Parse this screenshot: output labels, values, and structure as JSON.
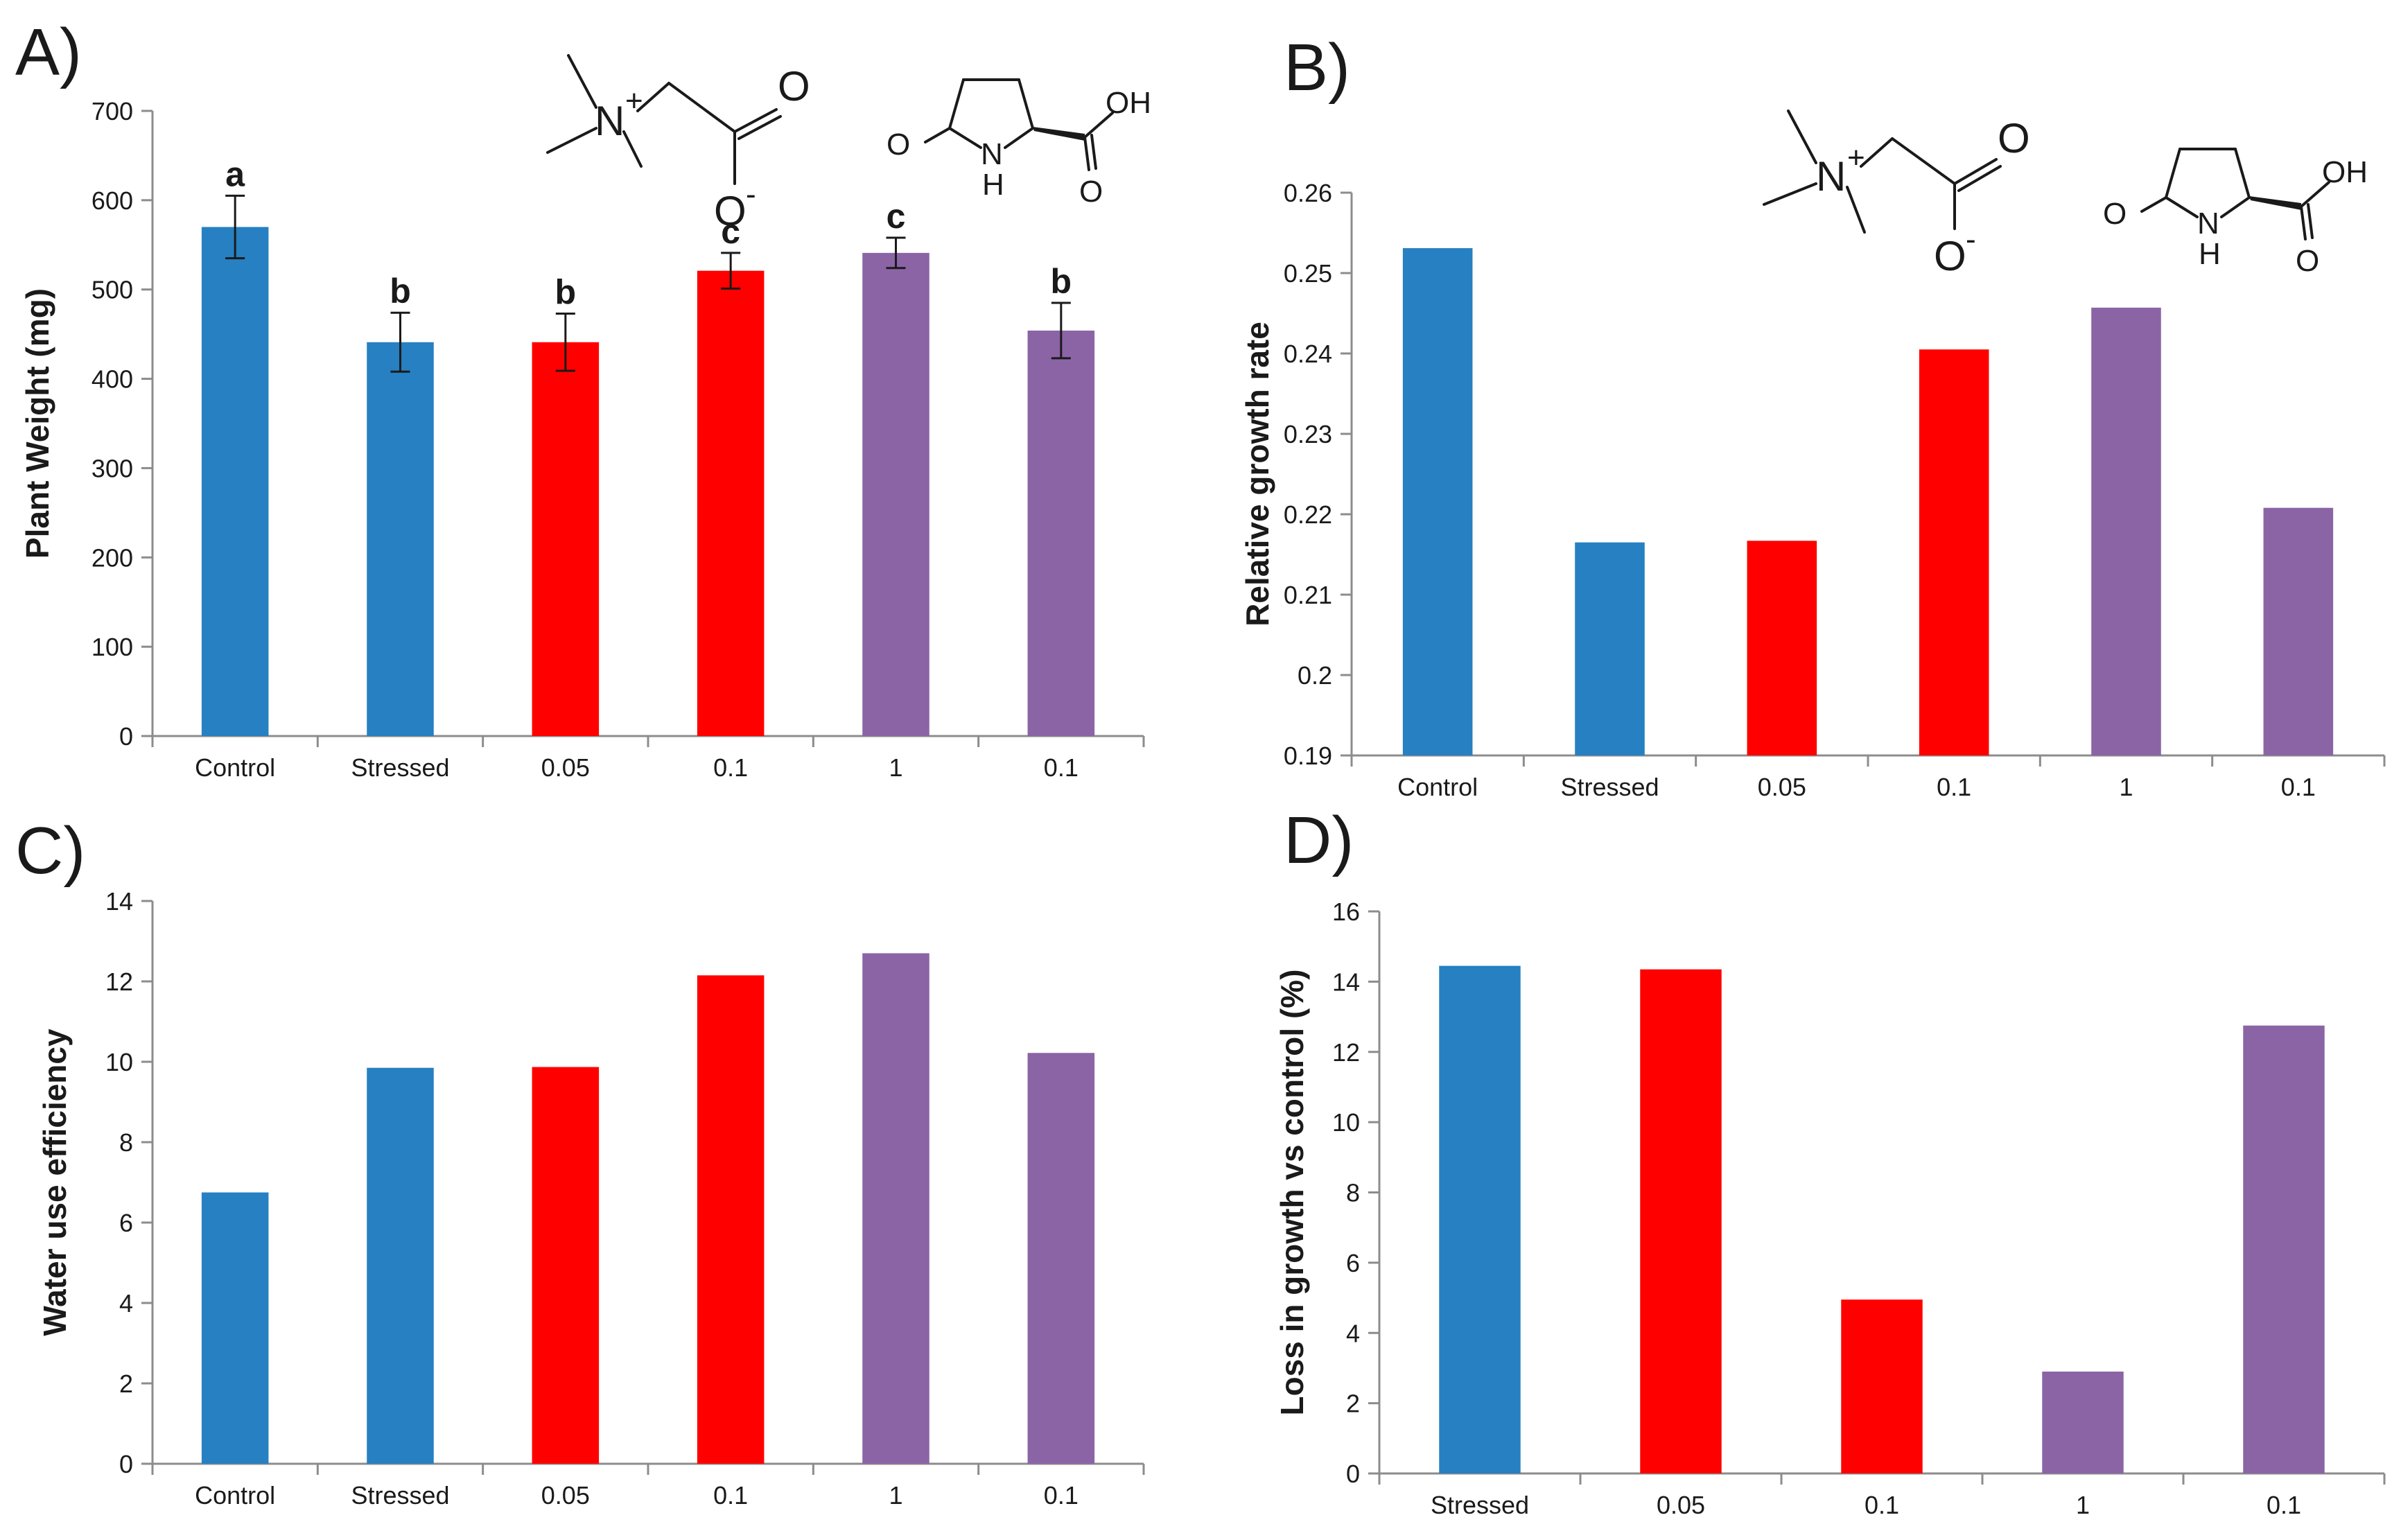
{
  "colors": {
    "blue": "#2680C2",
    "red": "#FF0000",
    "purple": "#8B64A6",
    "axis": "#8c8c8c",
    "text": "#1a1a1a"
  },
  "chemistry": {
    "glycine_betaine": {
      "nitrogen": "N",
      "charge_plus": "+",
      "oxygen_double": "O",
      "oxygen_anion": "O",
      "charge_minus": "-"
    },
    "pyroglutamic_acid": {
      "oxo": "O",
      "ring_n": "N",
      "ring_h": "H",
      "hydroxyl": "OH",
      "carbonyl_o": "O"
    }
  },
  "chart_data": [
    {
      "panel": "A)",
      "type": "bar",
      "categories": [
        "Control",
        "Stressed",
        "0.05",
        "0.1",
        "1",
        "0.1"
      ],
      "values": [
        570,
        441,
        441,
        521,
        541,
        454
      ],
      "errors": [
        35,
        33,
        32,
        20,
        17,
        31
      ],
      "significance": [
        "a",
        "b",
        "b",
        "c",
        "c",
        "b"
      ],
      "bar_colors": [
        "#2680C2",
        "#2680C2",
        "#FF0000",
        "#FF0000",
        "#8B64A6",
        "#8B64A6"
      ],
      "ylabel": "Plant Weight (mg)",
      "ylim": [
        0,
        700
      ],
      "yticks": [
        "0",
        "100",
        "200",
        "300",
        "400",
        "500",
        "600",
        "700"
      ],
      "grid": false
    },
    {
      "panel": "B)",
      "type": "bar",
      "categories": [
        "Control",
        "Stressed",
        "0.05",
        "0.1",
        "1",
        "0.1"
      ],
      "values": [
        0.2531,
        0.2165,
        0.2167,
        0.2405,
        0.2457,
        0.2208
      ],
      "bar_colors": [
        "#2680C2",
        "#2680C2",
        "#FF0000",
        "#FF0000",
        "#8B64A6",
        "#8B64A6"
      ],
      "ylabel": "Relative growth rate",
      "ylim": [
        0.19,
        0.26
      ],
      "yticks": [
        "0.19",
        "0.2",
        "0.21",
        "0.22",
        "0.23",
        "0.24",
        "0.25",
        "0.26"
      ],
      "grid": false
    },
    {
      "panel": "C)",
      "type": "bar",
      "categories": [
        "Control",
        "Stressed",
        "0.05",
        "0.1",
        "1",
        "0.1"
      ],
      "values": [
        6.75,
        9.85,
        9.87,
        12.15,
        12.7,
        10.22
      ],
      "bar_colors": [
        "#2680C2",
        "#2680C2",
        "#FF0000",
        "#FF0000",
        "#8B64A6",
        "#8B64A6"
      ],
      "ylabel": "Water use efficiency",
      "ylim": [
        0,
        14
      ],
      "yticks": [
        "0",
        "2",
        "4",
        "6",
        "8",
        "10",
        "12",
        "14"
      ],
      "grid": false
    },
    {
      "panel": "D)",
      "type": "bar",
      "categories": [
        "Stressed",
        "0.05",
        "0.1",
        "1",
        "0.1"
      ],
      "values": [
        14.45,
        14.35,
        4.95,
        2.9,
        12.75
      ],
      "bar_colors": [
        "#2680C2",
        "#FF0000",
        "#FF0000",
        "#8B64A6",
        "#8B64A6"
      ],
      "ylabel": "Loss in growth vs control (%)",
      "ylim": [
        0,
        16
      ],
      "yticks": [
        "0",
        "2",
        "4",
        "6",
        "8",
        "10",
        "12",
        "14",
        "16"
      ],
      "grid": false
    }
  ]
}
